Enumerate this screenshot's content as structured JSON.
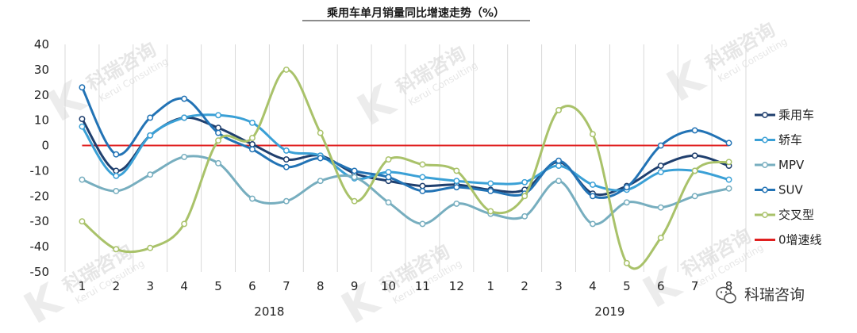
{
  "chart_data": {
    "type": "line",
    "title": "乘用车单月销量同比增速走势（%）",
    "categories": [
      "1",
      "2",
      "3",
      "4",
      "5",
      "6",
      "7",
      "8",
      "9",
      "10",
      "11",
      "12",
      "1",
      "2",
      "3",
      "4",
      "5",
      "6",
      "7",
      "8"
    ],
    "year_groups": [
      {
        "label": "2018",
        "start": 0,
        "end": 11
      },
      {
        "label": "2019",
        "start": 12,
        "end": 19
      }
    ],
    "ylim": [
      -50,
      40
    ],
    "yticks": [
      40,
      30,
      20,
      10,
      0,
      -10,
      -20,
      -30,
      -40,
      -50
    ],
    "grid": "vertical",
    "legend_position": "right",
    "series": [
      {
        "name": "乘用车",
        "color": "#1f3f6e",
        "values": [
          10.5,
          -10.0,
          4.0,
          11.0,
          7.0,
          0.5,
          -5.5,
          -4.0,
          -11.0,
          -14.0,
          -16.0,
          -15.5,
          -17.5,
          -17.5,
          -6.5,
          -19.0,
          -16.0,
          -8.0,
          -4.0,
          -8.0
        ]
      },
      {
        "name": "轿车",
        "color": "#3aa0d6",
        "values": [
          7.5,
          -12.0,
          4.0,
          11.0,
          12.0,
          9.0,
          -2.0,
          -4.0,
          -13.0,
          -10.5,
          -12.5,
          -14.0,
          -15.0,
          -14.5,
          -8.0,
          -15.5,
          -17.5,
          -10.5,
          -10.0,
          -13.5
        ]
      },
      {
        "name": "MPV",
        "color": "#77aebf",
        "values": [
          -13.5,
          -18.0,
          -11.5,
          -4.5,
          -7.0,
          -21.0,
          -22.0,
          -14.0,
          -12.5,
          -22.5,
          -31.0,
          -23.0,
          -27.0,
          -28.0,
          -14.0,
          -31.0,
          -22.5,
          -24.5,
          -20.0,
          -17.0
        ]
      },
      {
        "name": "SUV",
        "color": "#2273b5",
        "values": [
          23.0,
          -3.5,
          11.0,
          18.5,
          5.0,
          -1.5,
          -8.5,
          -5.0,
          -10.0,
          -12.5,
          -18.0,
          -16.5,
          -18.0,
          -19.0,
          -6.0,
          -20.0,
          -16.5,
          0.0,
          6.0,
          1.0
        ]
      },
      {
        "name": "交叉型",
        "color": "#a9c26a",
        "values": [
          -30.0,
          -41.0,
          -40.5,
          -31.0,
          2.0,
          3.0,
          30.0,
          5.0,
          -22.0,
          -5.5,
          -7.5,
          -10.0,
          -26.0,
          -20.0,
          14.0,
          4.5,
          -46.5,
          -36.5,
          -10.0,
          -6.5
        ]
      }
    ],
    "reference_line": {
      "name": "0增速线",
      "value": 0,
      "color": "#e02020"
    }
  },
  "watermark": {
    "logo_glyph": "K",
    "brand_cn": "科瑞咨询",
    "brand_en": "Kerui Consulting"
  },
  "footer_brand": {
    "icon": "wechat-icon",
    "text": "科瑞咨询"
  }
}
